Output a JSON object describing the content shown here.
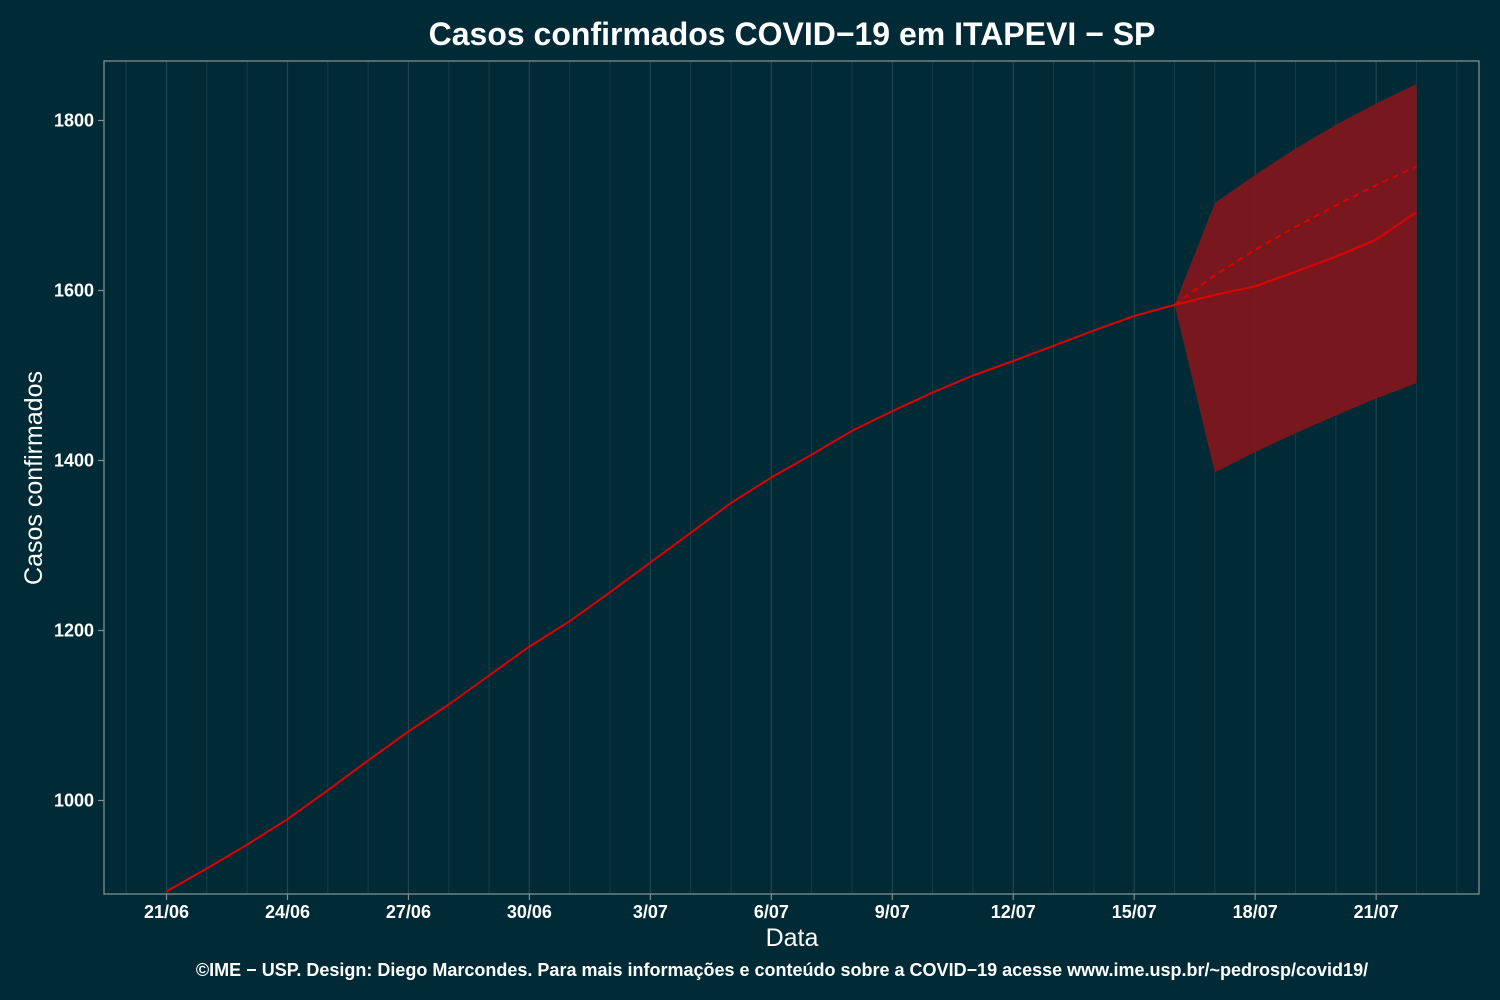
{
  "colors": {
    "background": "#002b36",
    "grid": "#1d4650",
    "panel_border": "#7f8f91",
    "series": "#e00000",
    "band": "#7e171e"
  },
  "chart_data": {
    "type": "line",
    "title": "Casos confirmados COVID−19 em ITAPEVI − SP",
    "xlabel": "Data",
    "ylabel": "Casos confirmados",
    "caption": "©IME − USP. Design: Diego Marcondes. Para mais informações e conteúdo sobre a COVID−19 acesse www.ime.usp.br/~pedrosp/covid19/",
    "x_tick_labels": [
      "21/06",
      "24/06",
      "27/06",
      "30/06",
      "3/07",
      "6/07",
      "9/07",
      "12/07",
      "15/07",
      "18/07",
      "21/07"
    ],
    "y_ticks": [
      1000,
      1200,
      1400,
      1600,
      1800
    ],
    "xlim": [
      "2020-06-21",
      "2020-07-22"
    ],
    "ylim": [
      890,
      1870
    ],
    "grid": true,
    "series": [
      {
        "style": "solid",
        "x": [
          "2020-06-21",
          "2020-06-22",
          "2020-06-23",
          "2020-06-24",
          "2020-06-25",
          "2020-06-26",
          "2020-06-27",
          "2020-06-28",
          "2020-06-29",
          "2020-06-30",
          "2020-07-01",
          "2020-07-02",
          "2020-07-03",
          "2020-07-04",
          "2020-07-05",
          "2020-07-06",
          "2020-07-07",
          "2020-07-08",
          "2020-07-09",
          "2020-07-10",
          "2020-07-11",
          "2020-07-12",
          "2020-07-13",
          "2020-07-14",
          "2020-07-15",
          "2020-07-16",
          "2020-07-17",
          "2020-07-18",
          "2020-07-19",
          "2020-07-20",
          "2020-07-21",
          "2020-07-22"
        ],
        "values": [
          893,
          920,
          948,
          978,
          1012,
          1047,
          1081,
          1113,
          1147,
          1181,
          1211,
          1245,
          1280,
          1315,
          1350,
          1380,
          1407,
          1435,
          1458,
          1480,
          1500,
          1517,
          1535,
          1553,
          1570,
          1583,
          1595,
          1605,
          1622,
          1640,
          1660,
          1692
        ]
      },
      {
        "style": "dashed",
        "x": [
          "2020-07-16",
          "2020-07-17",
          "2020-07-18",
          "2020-07-19",
          "2020-07-20",
          "2020-07-21",
          "2020-07-22"
        ],
        "values": [
          1583,
          1618,
          1648,
          1675,
          1700,
          1724,
          1746
        ]
      }
    ],
    "band": {
      "x": [
        "2020-07-16",
        "2020-07-17",
        "2020-07-18",
        "2020-07-19",
        "2020-07-20",
        "2020-07-21",
        "2020-07-22"
      ],
      "upper": [
        1583,
        1703,
        1736,
        1767,
        1795,
        1820,
        1843
      ],
      "lower": [
        1583,
        1386,
        1410,
        1432,
        1453,
        1473,
        1491
      ]
    }
  }
}
